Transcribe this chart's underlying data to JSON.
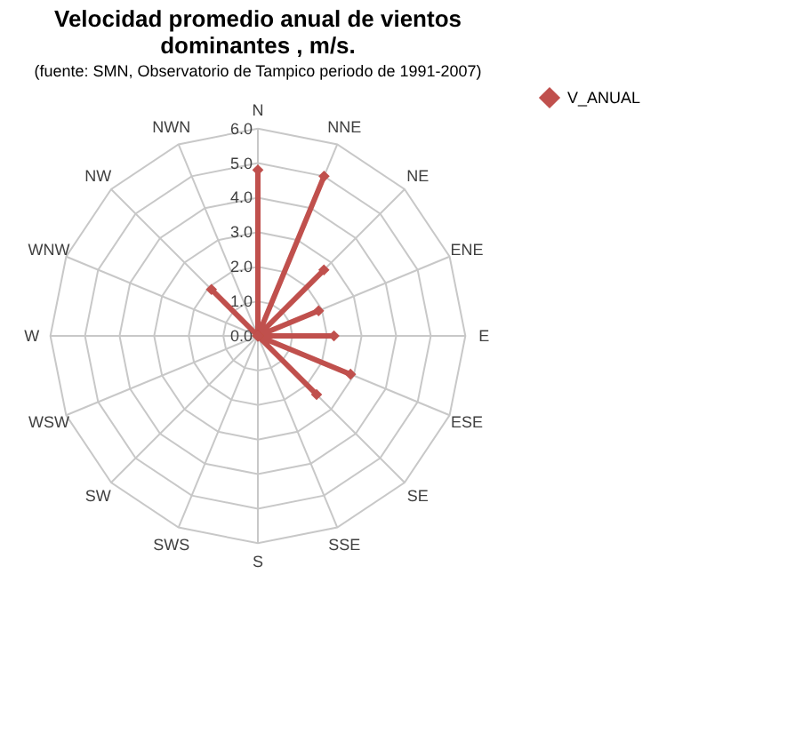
{
  "chart_data": {
    "type": "radar",
    "title": [
      "Velocidad  promedio  anual de vientos",
      "dominantes , m/s."
    ],
    "subtitle": "(fuente: SMN, Observatorio de Tampico periodo de 1991-2007)",
    "categories": [
      "N",
      "NNE",
      "NE",
      "ENE",
      "E",
      "ESE",
      "SE",
      "SSE",
      "S",
      "SWS",
      "SW",
      "WSW",
      "W",
      "WNW",
      "NW",
      "NWN"
    ],
    "series": [
      {
        "name": "V_ANUAL",
        "color": "#c0504d",
        "values": [
          4.8,
          5.0,
          2.7,
          1.9,
          2.2,
          2.9,
          2.4,
          0,
          0,
          0,
          0,
          0,
          0,
          0,
          1.9,
          0
        ]
      }
    ],
    "ylim": [
      0,
      6
    ],
    "yticks": [
      {
        "value": 0,
        "label": "0.0"
      },
      {
        "value": 1,
        "label": "1.0"
      },
      {
        "value": 2,
        "label": "2.0"
      },
      {
        "value": 3,
        "label": "3.0"
      },
      {
        "value": 4,
        "label": "4.0"
      },
      {
        "value": 5,
        "label": "5.0"
      },
      {
        "value": 6,
        "label": "6.0"
      }
    ],
    "grid": true,
    "legend": "right",
    "marker": "diamond",
    "line_style": "solid"
  }
}
